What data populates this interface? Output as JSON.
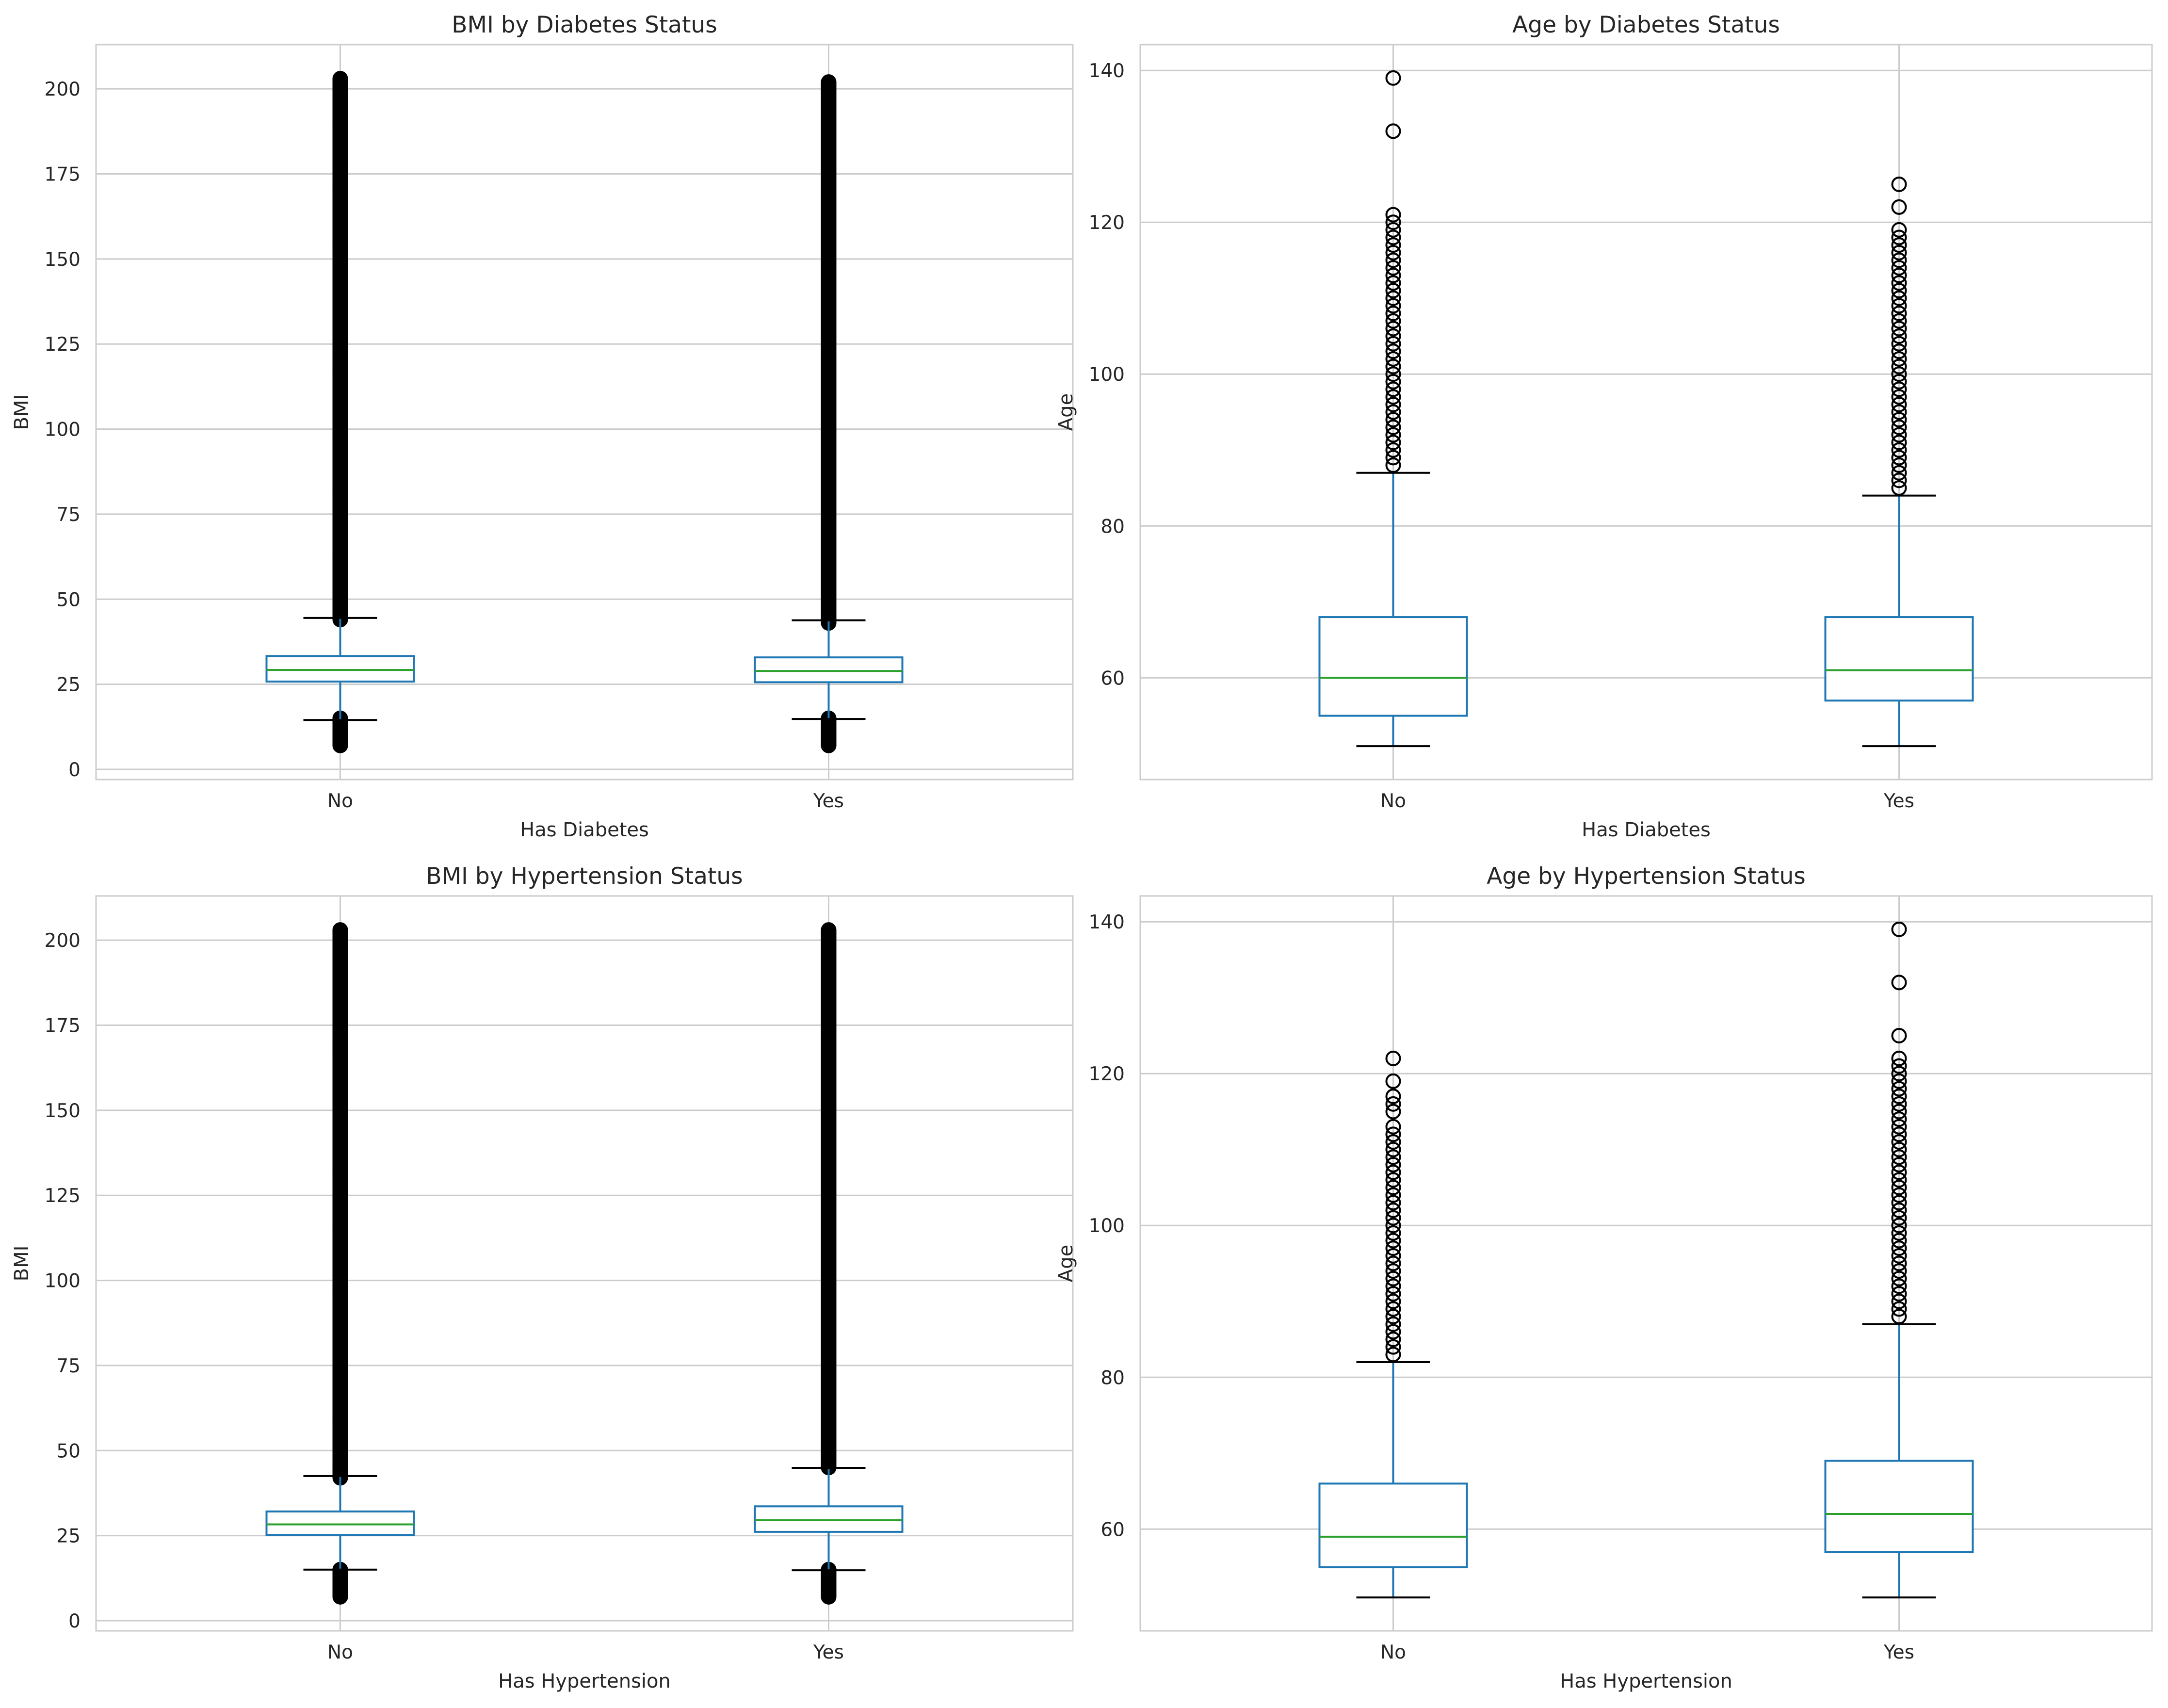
{
  "chart_data": [
    {
      "type": "box",
      "title": "BMI by Diabetes Status",
      "xlabel": "Has Diabetes",
      "ylabel": "BMI",
      "ylim": [
        -3,
        213
      ],
      "yticks": [
        0,
        25,
        50,
        75,
        100,
        125,
        150,
        175,
        200
      ],
      "categories": [
        "No",
        "Yes"
      ],
      "boxes": [
        {
          "category": "No",
          "whisker_low": 14.5,
          "q1": 25.8,
          "median": 29.2,
          "q3": 33.3,
          "whisker_high": 44.5,
          "outliers_low": [
            7,
            15
          ],
          "outliers_high": [
            44,
            203
          ]
        },
        {
          "category": "Yes",
          "whisker_low": 14.8,
          "q1": 25.6,
          "median": 28.9,
          "q3": 32.9,
          "whisker_high": 43.8,
          "outliers_low": [
            7,
            15
          ],
          "outliers_high": [
            43,
            202
          ]
        }
      ],
      "grid": true
    },
    {
      "type": "box",
      "title": "Age by Diabetes Status",
      "xlabel": "Has Diabetes",
      "ylabel": "Age",
      "ylim": [
        46.6,
        143.4
      ],
      "yticks": [
        60,
        80,
        100,
        120,
        140
      ],
      "categories": [
        "No",
        "Yes"
      ],
      "boxes": [
        {
          "category": "No",
          "whisker_low": 51,
          "q1": 55,
          "median": 60,
          "q3": 68,
          "whisker_high": 87,
          "outliers_high": [
            88,
            89,
            90,
            91,
            92,
            93,
            94,
            95,
            96,
            97,
            98,
            99,
            100,
            101,
            102,
            103,
            104,
            105,
            106,
            107,
            108,
            109,
            110,
            111,
            112,
            113,
            114,
            115,
            116,
            117,
            118,
            119,
            120,
            121,
            132,
            139
          ]
        },
        {
          "category": "Yes",
          "whisker_low": 51,
          "q1": 57,
          "median": 61,
          "q3": 68,
          "whisker_high": 84,
          "outliers_high": [
            85,
            86,
            87,
            88,
            89,
            90,
            91,
            92,
            93,
            94,
            95,
            96,
            97,
            98,
            99,
            100,
            101,
            102,
            103,
            104,
            105,
            106,
            107,
            108,
            109,
            110,
            111,
            112,
            113,
            114,
            115,
            116,
            117,
            118,
            119,
            122,
            125
          ]
        }
      ],
      "grid": true
    },
    {
      "type": "box",
      "title": "BMI by Hypertension Status",
      "xlabel": "Has Hypertension",
      "ylabel": "BMI",
      "ylim": [
        -3,
        213
      ],
      "yticks": [
        0,
        25,
        50,
        75,
        100,
        125,
        150,
        175,
        200
      ],
      "categories": [
        "No",
        "Yes"
      ],
      "boxes": [
        {
          "category": "No",
          "whisker_low": 15,
          "q1": 25.2,
          "median": 28.3,
          "q3": 32.1,
          "whisker_high": 42.5,
          "outliers_low": [
            7,
            15
          ],
          "outliers_high": [
            42,
            203
          ]
        },
        {
          "category": "Yes",
          "whisker_low": 14.8,
          "q1": 26.1,
          "median": 29.5,
          "q3": 33.6,
          "whisker_high": 44.9,
          "outliers_low": [
            7,
            15
          ],
          "outliers_high": [
            45,
            203
          ]
        }
      ],
      "grid": true
    },
    {
      "type": "box",
      "title": "Age by Hypertension Status",
      "xlabel": "Has Hypertension",
      "ylabel": "Age",
      "ylim": [
        46.6,
        143.4
      ],
      "yticks": [
        60,
        80,
        100,
        120,
        140
      ],
      "categories": [
        "No",
        "Yes"
      ],
      "boxes": [
        {
          "category": "No",
          "whisker_low": 51,
          "q1": 55,
          "median": 59,
          "q3": 66,
          "whisker_high": 82,
          "outliers_high": [
            83,
            84,
            85,
            86,
            87,
            88,
            89,
            90,
            91,
            92,
            93,
            94,
            95,
            96,
            97,
            98,
            99,
            100,
            101,
            102,
            103,
            104,
            105,
            106,
            107,
            108,
            109,
            110,
            111,
            112,
            113,
            115,
            116,
            117,
            119,
            122
          ]
        },
        {
          "category": "Yes",
          "whisker_low": 51,
          "q1": 57,
          "median": 62,
          "q3": 69,
          "whisker_high": 87,
          "outliers_high": [
            88,
            89,
            90,
            91,
            92,
            93,
            94,
            95,
            96,
            97,
            98,
            99,
            100,
            101,
            102,
            103,
            104,
            105,
            106,
            107,
            108,
            109,
            110,
            111,
            112,
            113,
            114,
            115,
            116,
            117,
            118,
            119,
            120,
            121,
            122,
            125,
            132,
            139
          ]
        }
      ],
      "grid": true
    }
  ],
  "colors": {
    "box": "#1f77b4",
    "median": "#2ca02c",
    "whisker_cap": "#000000",
    "flier": "#000000",
    "grid": "#cccccc",
    "spine": "#cccccc"
  }
}
